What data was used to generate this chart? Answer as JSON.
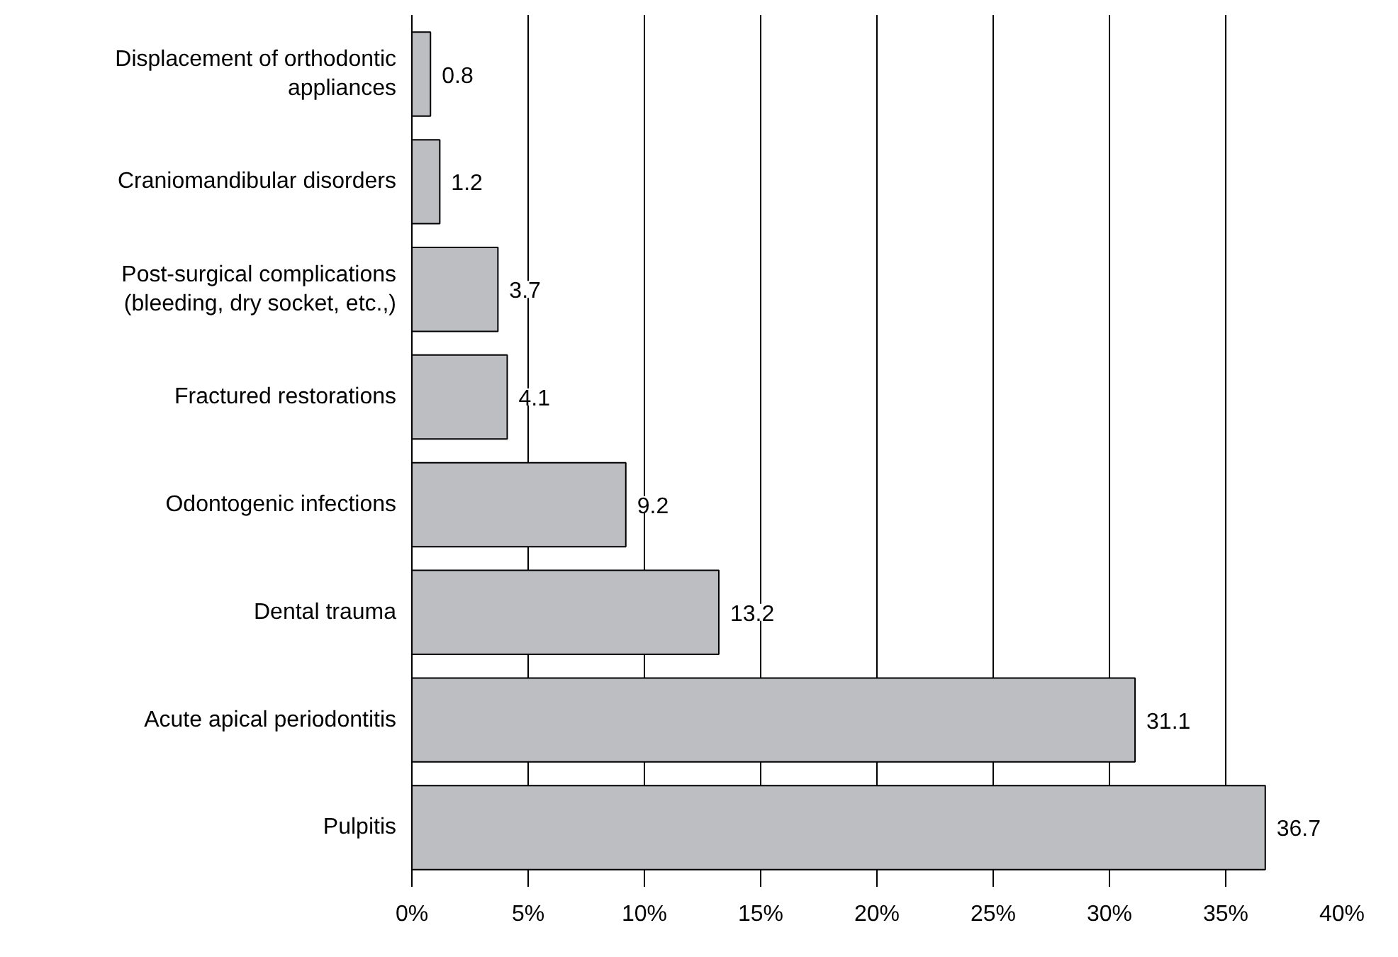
{
  "chart_data": {
    "type": "bar",
    "orientation": "horizontal",
    "categories": [
      "Displacement of orthodontic\nappliances",
      "Craniomandibular disorders",
      "Post-surgical complications\n(bleeding, dry socket, etc.,)",
      "Fractured restorations",
      "Odontogenic infections",
      "Dental trauma",
      "Acute apical periodontitis",
      "Pulpitis"
    ],
    "values": [
      0.8,
      1.2,
      3.7,
      4.1,
      9.2,
      13.2,
      31.1,
      36.7
    ],
    "color": "#bdbec2",
    "xlim": [
      0,
      40
    ],
    "xticks": [
      {
        "value": 0,
        "label": "0%"
      },
      {
        "value": 5,
        "label": "5%"
      },
      {
        "value": 10,
        "label": "10%"
      },
      {
        "value": 15,
        "label": "15%"
      },
      {
        "value": 20,
        "label": "20%"
      },
      {
        "value": 25,
        "label": "25%"
      },
      {
        "value": 30,
        "label": "30%"
      },
      {
        "value": 35,
        "label": "35%"
      },
      {
        "value": 40,
        "label": "40%"
      }
    ],
    "grid": "x",
    "data_labels": true
  }
}
